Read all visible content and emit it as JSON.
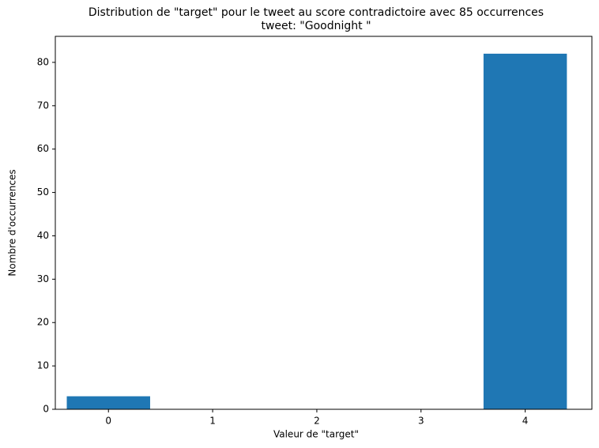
{
  "chart_data": {
    "type": "bar",
    "title": "Distribution de \"target\" pour le tweet au score contradictoire avec 85 occurrences",
    "subtitle": "tweet: \"Goodnight \"",
    "x_label": "Valeur de \"target\"",
    "y_label": "Nombre d'occurrences",
    "x": [
      0,
      4
    ],
    "values": [
      3,
      82
    ],
    "color": "#1f77b4",
    "bar_width": 0.8,
    "xlim": [
      -0.51,
      4.64
    ],
    "xticks": [
      0,
      1,
      2,
      3,
      4
    ],
    "ylim": [
      0,
      86
    ],
    "yticks": [
      0,
      10,
      20,
      30,
      40,
      50,
      60,
      70,
      80
    ],
    "grid": false
  }
}
